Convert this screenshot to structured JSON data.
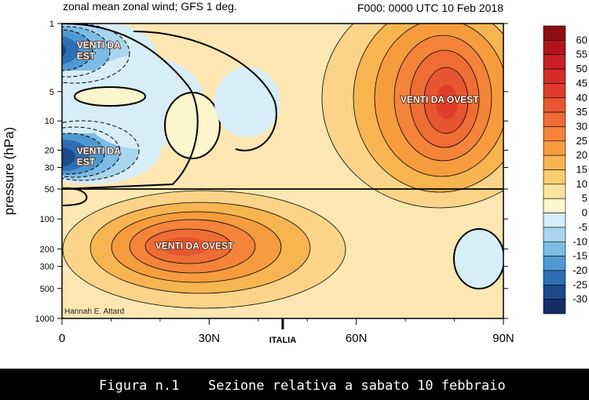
{
  "chart_data": {
    "type": "contour",
    "title_left": "zonal mean zonal wind; GFS 1 deg.",
    "title_right": "F000: 0000 UTC 10 Feb 2018",
    "ylabel": "pressure (hPa)",
    "x_ticks": [
      "0",
      "30N",
      "60N",
      "90N"
    ],
    "x_tick_values": [
      0,
      30,
      60,
      90
    ],
    "x_marker_label": "ITALIA",
    "x_marker_value": 45,
    "xlim": [
      0,
      90
    ],
    "y_ticks": [
      "1",
      "5",
      "10",
      "20",
      "30",
      "50",
      "100",
      "200",
      "300",
      "500",
      "1000"
    ],
    "y_tick_values": [
      1,
      5,
      10,
      20,
      30,
      50,
      100,
      200,
      300,
      500,
      1000
    ],
    "ylim": [
      1,
      1000
    ],
    "y_scale": "log",
    "y_scale_split_at": 50,
    "colorbar": {
      "levels": [
        "60",
        "55",
        "50",
        "45",
        "40",
        "35",
        "30",
        "25",
        "20",
        "15",
        "10",
        "5",
        "0",
        "-5",
        "-10",
        "-15",
        "-20",
        "-25",
        "-30"
      ],
      "colors": [
        "#8e0c14",
        "#b2141c",
        "#c81f22",
        "#d42c27",
        "#df3d2a",
        "#e75630",
        "#ee6d35",
        "#f3843a",
        "#f79c3e",
        "#f9b452",
        "#fbcd71",
        "#fde49d",
        "#fdf5cc",
        "#d7edf7",
        "#a9d5ee",
        "#7bbde6",
        "#4f99d2",
        "#2d6fb4",
        "#1c4a8a",
        "#162e68"
      ]
    },
    "annotations": [
      {
        "text": "VENTI DA EST",
        "lines": [
          "VENTI DA",
          "EST"
        ],
        "lat": 3,
        "pressure": 1.8
      },
      {
        "text": "VENTI DA EST",
        "lines": [
          "VENTI DA",
          "EST"
        ],
        "lat": 3,
        "pressure": 22
      },
      {
        "text": "VENTI DA OVEST",
        "lines": [
          "VENTI DA OVEST"
        ],
        "lat": 77,
        "pressure": 6.5
      },
      {
        "text": "VENTI DA OVEST",
        "lines": [
          "VENTI DA OVEST"
        ],
        "lat": 27,
        "pressure": 200
      }
    ],
    "wind_maxima": [
      {
        "lat": 78,
        "pressure": 8,
        "value": 45,
        "note": "westerly jet core"
      },
      {
        "lat": 27,
        "pressure": 200,
        "value": 40,
        "note": "subtropical jet core"
      },
      {
        "lat": 1,
        "pressure": 2,
        "value": -30,
        "note": "easterly core upper"
      },
      {
        "lat": 4,
        "pressure": 22,
        "value": -30,
        "note": "easterly core lower"
      }
    ],
    "credit": "Hannah E. Attard"
  },
  "caption": {
    "number": "Figura n.1",
    "text": "Sezione relativa a sabato 10 febbraio"
  }
}
